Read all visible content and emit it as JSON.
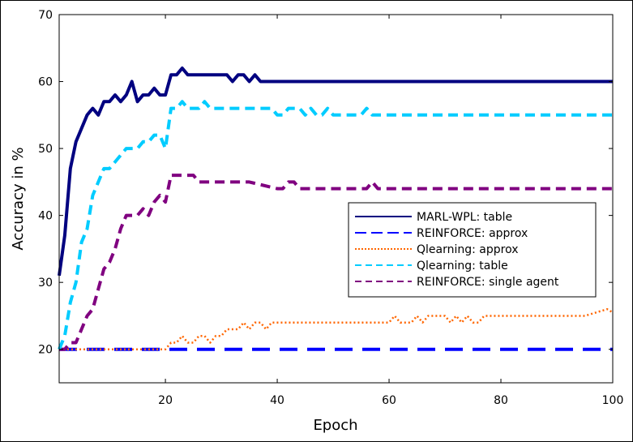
{
  "chart_data": {
    "type": "line",
    "title": "",
    "xlabel": "Epoch",
    "ylabel": "Accuracy in %",
    "xlim": [
      1,
      100
    ],
    "ylim": [
      15,
      70
    ],
    "xticks": [
      20,
      40,
      60,
      80,
      100
    ],
    "yticks": [
      20,
      30,
      40,
      50,
      60,
      70
    ],
    "grid": false,
    "legend_position": "center-right",
    "series": [
      {
        "name": "MARL-WPL: table",
        "color": "#000080",
        "dash": "solid",
        "x": [
          1,
          2,
          3,
          4,
          5,
          6,
          7,
          8,
          9,
          10,
          11,
          12,
          13,
          14,
          15,
          16,
          17,
          18,
          19,
          20,
          21,
          22,
          23,
          24,
          25,
          26,
          27,
          28,
          29,
          30,
          31,
          32,
          33,
          34,
          35,
          36,
          37,
          38,
          39,
          40,
          50,
          60,
          70,
          80,
          90,
          100
        ],
        "y": [
          31,
          37,
          47,
          51,
          53,
          55,
          56,
          55,
          57,
          57,
          58,
          57,
          58,
          60,
          57,
          58,
          58,
          59,
          58,
          58,
          61,
          61,
          62,
          61,
          61,
          61,
          61,
          61,
          61,
          61,
          61,
          60,
          61,
          61,
          60,
          61,
          60,
          60,
          60,
          60,
          60,
          60,
          60,
          60,
          60,
          60
        ]
      },
      {
        "name": "REINFORCE: approx",
        "color": "#0000ff",
        "dash": "long-dash",
        "x": [
          1,
          10,
          20,
          30,
          40,
          50,
          60,
          70,
          80,
          90,
          100
        ],
        "y": [
          20,
          20,
          20,
          20,
          20,
          20,
          20,
          20,
          20,
          20,
          20
        ]
      },
      {
        "name": "Qlearning: approx",
        "color": "#ff6600",
        "dash": "dotted",
        "x": [
          1,
          5,
          10,
          15,
          20,
          21,
          22,
          23,
          24,
          25,
          26,
          27,
          28,
          29,
          30,
          31,
          32,
          33,
          34,
          35,
          36,
          37,
          38,
          39,
          40,
          45,
          50,
          55,
          59,
          60,
          61,
          62,
          63,
          64,
          65,
          66,
          67,
          68,
          69,
          70,
          71,
          72,
          73,
          74,
          75,
          76,
          77,
          80,
          85,
          90,
          95,
          99,
          100
        ],
        "y": [
          20,
          20,
          20,
          20,
          20,
          21,
          21,
          22,
          21,
          21,
          22,
          22,
          21,
          22,
          22,
          23,
          23,
          23,
          24,
          23,
          24,
          24,
          23,
          24,
          24,
          24,
          24,
          24,
          24,
          24,
          25,
          24,
          24,
          24,
          25,
          24,
          25,
          25,
          25,
          25,
          24,
          25,
          24,
          25,
          24,
          24,
          25,
          25,
          25,
          25,
          25,
          26,
          25.5
        ]
      },
      {
        "name": "Qlearning: table",
        "color": "#00ccff",
        "dash": "dashed",
        "x": [
          1,
          2,
          3,
          4,
          5,
          6,
          7,
          8,
          9,
          10,
          11,
          12,
          13,
          14,
          15,
          16,
          17,
          18,
          19,
          20,
          21,
          22,
          23,
          24,
          25,
          26,
          27,
          28,
          29,
          30,
          31,
          32,
          33,
          34,
          35,
          36,
          37,
          38,
          39,
          40,
          41,
          42,
          43,
          44,
          45,
          46,
          47,
          48,
          49,
          50,
          55,
          56,
          57,
          60,
          70,
          80,
          90,
          100
        ],
        "y": [
          20,
          22,
          27,
          30,
          36,
          38,
          43,
          45,
          47,
          47,
          48,
          49,
          50,
          50,
          50,
          51,
          51,
          52,
          52,
          50,
          56,
          56,
          57,
          56,
          56,
          56,
          57,
          56,
          56,
          56,
          56,
          56,
          56,
          56,
          56,
          56,
          56,
          56,
          56,
          55,
          55,
          56,
          56,
          56,
          55,
          56,
          55,
          55,
          56,
          55,
          55,
          56,
          55,
          55,
          55,
          55,
          55,
          55
        ]
      },
      {
        "name": "REINFORCE: single agent",
        "color": "#800080",
        "dash": "dashed",
        "x": [
          1,
          2,
          3,
          4,
          5,
          6,
          7,
          8,
          9,
          10,
          11,
          12,
          13,
          14,
          15,
          16,
          17,
          18,
          19,
          20,
          21,
          22,
          23,
          24,
          25,
          26,
          27,
          28,
          29,
          30,
          35,
          40,
          41,
          42,
          43,
          44,
          45,
          50,
          55,
          56,
          57,
          58,
          60,
          70,
          80,
          90,
          100
        ],
        "y": [
          20,
          20,
          21,
          21,
          23,
          25,
          26,
          29,
          32,
          33,
          35,
          38,
          40,
          40,
          40,
          41,
          40,
          42,
          43,
          42,
          46,
          46,
          46,
          46,
          46,
          45,
          45,
          45,
          45,
          45,
          45,
          44,
          44,
          45,
          45,
          44,
          44,
          44,
          44,
          44,
          45,
          44,
          44,
          44,
          44,
          44,
          44
        ]
      }
    ]
  }
}
